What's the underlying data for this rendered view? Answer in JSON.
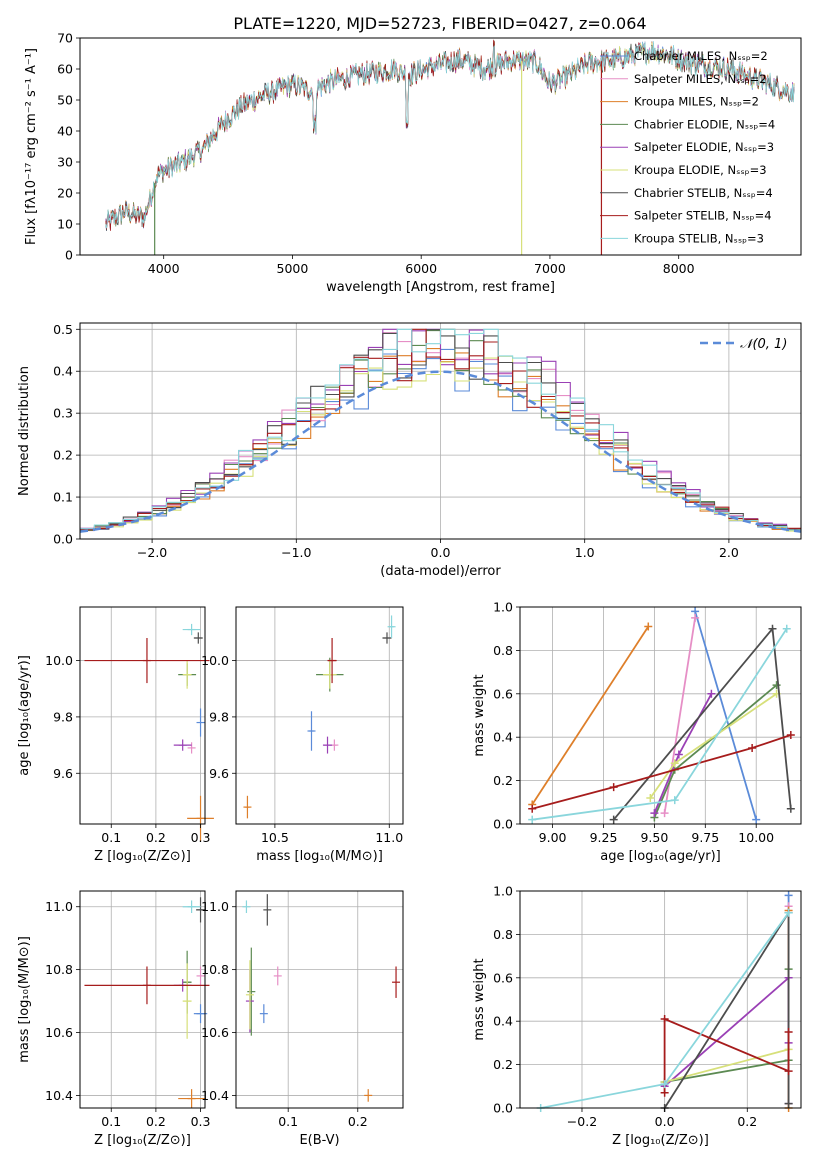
{
  "figure_title": "PLATE=1220, MJD=52723, FIBERID=0427, z=0.064",
  "model_colors": [
    "#5b8bd8",
    "#e68fc6",
    "#de7f2a",
    "#5c8a52",
    "#9a40b5",
    "#d7e07a",
    "#4d4d4d",
    "#a61c1c",
    "#8ad6dc"
  ],
  "chart_data": [
    {
      "id": "spectrum",
      "type": "line",
      "title": "PLATE=1220, MJD=52723, FIBERID=0427, z=0.064",
      "xlabel": "wavelength [Angstrom, rest frame]",
      "ylabel": "Flux [fλ10⁻¹⁷ erg cm⁻² s⁻¹ A⁻¹]",
      "xlim": [
        3350,
        8950
      ],
      "ylim": [
        0,
        70
      ],
      "xticks": [
        4000,
        5000,
        6000,
        7000,
        8000
      ],
      "yticks": [
        0,
        10,
        20,
        30,
        40,
        50,
        60,
        70
      ],
      "grid": false,
      "legend_position": "right",
      "legend": [
        "Chabrier MILES, Nₛₛₚ=2",
        "Salpeter MILES, Nₛₛₚ=2",
        "Kroupa MILES, Nₛₛₚ=2",
        "Chabrier ELODIE, Nₛₛₚ=4",
        "Salpeter ELODIE, Nₛₛₚ=3",
        "Kroupa ELODIE, Nₛₛₚ=3",
        "Chabrier STELIB, Nₛₛₚ=4",
        "Salpeter STELIB, Nₛₛₚ=4",
        "Kroupa STELIB, Nₛₛₚ=3"
      ],
      "continuum": {
        "x": [
          3550,
          3700,
          3850,
          3950,
          4050,
          4150,
          4300,
          4450,
          4600,
          4800,
          5000,
          5150,
          5300,
          5500,
          5800,
          5900,
          6100,
          6300,
          6500,
          6700,
          6900,
          7000,
          7150,
          7300,
          7500,
          7800,
          8100,
          8400,
          8900
        ],
        "y": [
          10,
          14,
          12,
          26,
          28,
          30,
          34,
          42,
          48,
          52,
          55,
          53,
          56,
          58,
          60,
          58,
          61,
          63,
          60,
          63,
          62,
          55,
          58,
          62,
          63,
          66,
          62,
          60,
          52
        ]
      },
      "spectrum_end": 8900,
      "line_drops": [
        {
          "x": 3930,
          "model": 3
        },
        {
          "x": 6780,
          "model": 5
        },
        {
          "x": 7400,
          "model": 7
        }
      ]
    },
    {
      "id": "residuals",
      "type": "histogram",
      "xlabel": "(data-model)/error",
      "ylabel": "Normed distribution",
      "xlim": [
        -2.5,
        2.5
      ],
      "ylim": [
        0,
        0.515
      ],
      "xticks": [
        -2,
        -1,
        0,
        1,
        2
      ],
      "yticks": [
        0.0,
        0.1,
        0.2,
        0.3,
        0.4,
        0.5
      ],
      "grid": true,
      "legend_position": "top-right",
      "reference_curve": {
        "label": "𝒩(0, 1)",
        "mean": 0,
        "sigma": 1,
        "style": "dashed"
      },
      "bin_width": 0.1,
      "series_peak_heights": [
        0.41,
        0.47,
        0.42,
        0.45,
        0.49,
        0.43,
        0.46,
        0.45,
        0.47
      ]
    },
    {
      "id": "age_vs_Z",
      "type": "errorbar",
      "xlabel": "Z [log₁₀(Z/Z⊙)]",
      "ylabel": "age  [log₁₀(age/yr)]",
      "xlim": [
        0.03,
        0.31
      ],
      "ylim": [
        9.42,
        10.19
      ],
      "xticks": [
        0.1,
        0.2,
        0.3
      ],
      "yticks": [
        9.6,
        9.8,
        10.0
      ],
      "grid": true,
      "points": [
        {
          "x": 0.3,
          "y": 9.78,
          "xerr": 0,
          "yerr": 0.05
        },
        {
          "x": 0.28,
          "y": 9.69,
          "xerr": 0,
          "yerr": 0.02
        },
        {
          "x": 0.3,
          "y": 9.44,
          "xerr": 0.03,
          "yerr": 0.08
        },
        {
          "x": 0.27,
          "y": 9.95,
          "xerr": 0.02,
          "yerr": 0.04
        },
        {
          "x": 0.26,
          "y": 9.7,
          "xerr": 0.02,
          "yerr": 0.02
        },
        {
          "x": 0.27,
          "y": 9.95,
          "xerr": 0.01,
          "yerr": 0.05
        },
        {
          "x": 0.295,
          "y": 10.08,
          "xerr": 0.01,
          "yerr": 0.02
        },
        {
          "x": 0.18,
          "y": 10.0,
          "xerr": 0.14,
          "yerr": 0.08
        },
        {
          "x": 0.28,
          "y": 10.11,
          "xerr": 0.02,
          "yerr": 0.02
        }
      ]
    },
    {
      "id": "age_vs_mass",
      "type": "errorbar",
      "xlabel": "mass [log₁₀(M/M⊙)]",
      "ylabel": "",
      "xlim": [
        10.33,
        11.06
      ],
      "ylim": [
        9.42,
        10.19
      ],
      "xticks": [
        10.5,
        11.0
      ],
      "yticks": [
        9.6,
        9.8,
        10.0
      ],
      "grid": true,
      "points": [
        {
          "x": 10.66,
          "y": 9.75,
          "xerr": 0.01,
          "yerr": 0.07
        },
        {
          "x": 10.76,
          "y": 9.7,
          "xerr": 0.01,
          "yerr": 0.02
        },
        {
          "x": 10.38,
          "y": 9.48,
          "xerr": 0.01,
          "yerr": 0.04
        },
        {
          "x": 10.74,
          "y": 9.95,
          "xerr": 0.06,
          "yerr": 0.06
        },
        {
          "x": 10.73,
          "y": 9.7,
          "xerr": 0.02,
          "yerr": 0.03
        },
        {
          "x": 10.74,
          "y": 9.95,
          "xerr": 0.03,
          "yerr": 0.05
        },
        {
          "x": 10.99,
          "y": 10.08,
          "xerr": 0.02,
          "yerr": 0.02
        },
        {
          "x": 10.75,
          "y": 10.0,
          "xerr": 0.02,
          "yerr": 0.08
        },
        {
          "x": 11.01,
          "y": 10.12,
          "xerr": 0.01,
          "yerr": 0.04
        }
      ]
    },
    {
      "id": "weight_vs_age",
      "type": "line",
      "xlabel": "age  [log₁₀(age/yr)]",
      "ylabel": "mass weight",
      "xlim": [
        8.84,
        10.22
      ],
      "ylim": [
        0,
        1
      ],
      "xticks": [
        9.0,
        9.25,
        9.5,
        9.75,
        10.0
      ],
      "yticks": [
        0.0,
        0.2,
        0.4,
        0.6,
        0.8,
        1.0
      ],
      "grid": true,
      "series": [
        {
          "x": [
            9.7,
            10.0
          ],
          "y": [
            0.98,
            0.02
          ]
        },
        {
          "x": [
            9.55,
            9.7
          ],
          "y": [
            0.05,
            0.95
          ]
        },
        {
          "x": [
            8.9,
            9.47
          ],
          "y": [
            0.09,
            0.91
          ]
        },
        {
          "x": [
            9.5,
            9.6,
            10.1
          ],
          "y": [
            0.03,
            0.25,
            0.64
          ]
        },
        {
          "x": [
            9.5,
            9.62,
            9.78
          ],
          "y": [
            0.05,
            0.32,
            0.6
          ]
        },
        {
          "x": [
            9.48,
            9.6,
            10.1
          ],
          "y": [
            0.12,
            0.28,
            0.6
          ]
        },
        {
          "x": [
            9.3,
            10.08,
            10.17
          ],
          "y": [
            0.02,
            0.9,
            0.07
          ]
        },
        {
          "x": [
            8.9,
            9.3,
            9.98,
            10.17
          ],
          "y": [
            0.07,
            0.17,
            0.35,
            0.41
          ]
        },
        {
          "x": [
            8.9,
            9.6,
            10.15
          ],
          "y": [
            0.02,
            0.11,
            0.9
          ]
        }
      ]
    },
    {
      "id": "mass_vs_Z",
      "type": "errorbar",
      "xlabel": "Z [log₁₀(Z/Z⊙)]",
      "ylabel": "mass [log₁₀(M/M⊙)]",
      "xlim": [
        0.03,
        0.31
      ],
      "ylim": [
        10.36,
        11.05
      ],
      "xticks": [
        0.1,
        0.2,
        0.3
      ],
      "yticks": [
        10.4,
        10.6,
        10.8,
        11.0
      ],
      "grid": true,
      "points": [
        {
          "x": 0.3,
          "y": 10.66,
          "xerr": 0.015,
          "yerr": 0.03
        },
        {
          "x": 0.3,
          "y": 10.78,
          "xerr": 0,
          "yerr": 0.03
        },
        {
          "x": 0.28,
          "y": 10.39,
          "xerr": 0.03,
          "yerr": 0.03
        },
        {
          "x": 0.27,
          "y": 10.76,
          "xerr": 0.01,
          "yerr": 0.1
        },
        {
          "x": 0.26,
          "y": 10.75,
          "xerr": 0.02,
          "yerr": 0.02
        },
        {
          "x": 0.27,
          "y": 10.7,
          "xerr": 0.01,
          "yerr": 0.12
        },
        {
          "x": 0.3,
          "y": 10.99,
          "xerr": 0.01,
          "yerr": 0.04
        },
        {
          "x": 0.18,
          "y": 10.75,
          "xerr": 0.14,
          "yerr": 0.06
        },
        {
          "x": 0.28,
          "y": 11.0,
          "xerr": 0.02,
          "yerr": 0.02
        }
      ]
    },
    {
      "id": "mass_vs_EBV",
      "type": "errorbar",
      "xlabel": "E(B-V)",
      "ylabel": "",
      "xlim": [
        0.025,
        0.265
      ],
      "ylim": [
        10.36,
        11.05
      ],
      "xticks": [
        0.1,
        0.2
      ],
      "yticks": [
        10.4,
        10.6,
        10.8,
        11.0
      ],
      "grid": true,
      "points": [
        {
          "x": 0.065,
          "y": 10.66,
          "xerr": 0,
          "yerr": 0.03
        },
        {
          "x": 0.085,
          "y": 10.78,
          "xerr": 0,
          "yerr": 0.03
        },
        {
          "x": 0.215,
          "y": 10.4,
          "xerr": 0,
          "yerr": 0.02
        },
        {
          "x": 0.047,
          "y": 10.73,
          "xerr": 0,
          "yerr": 0.14
        },
        {
          "x": 0.045,
          "y": 10.7,
          "xerr": 0,
          "yerr": 0.1
        },
        {
          "x": 0.045,
          "y": 10.72,
          "xerr": 0,
          "yerr": 0.11
        },
        {
          "x": 0.07,
          "y": 10.99,
          "xerr": 0,
          "yerr": 0.05
        },
        {
          "x": 0.255,
          "y": 10.76,
          "xerr": 0,
          "yerr": 0.05
        },
        {
          "x": 0.04,
          "y": 11.0,
          "xerr": 0,
          "yerr": 0.02
        }
      ]
    },
    {
      "id": "weight_vs_Z",
      "type": "line",
      "xlabel": "Z [log₁₀(Z/Z⊙)]",
      "ylabel": "mass weight",
      "xlim": [
        -0.35,
        0.33
      ],
      "ylim": [
        0,
        1
      ],
      "xticks": [
        -0.2,
        0.0,
        0.2
      ],
      "yticks": [
        0.0,
        0.2,
        0.4,
        0.6,
        0.8,
        1.0
      ],
      "grid": true,
      "series": [
        {
          "x": [
            0.3,
            0.3
          ],
          "y": [
            0.02,
            0.98
          ]
        },
        {
          "x": [
            0.3,
            0.3
          ],
          "y": [
            0.02,
            0.93
          ]
        },
        {
          "x": [
            0.3,
            0.3
          ],
          "y": [
            0.0,
            0.91
          ]
        },
        {
          "x": [
            0.0,
            0.3,
            0.3
          ],
          "y": [
            0.12,
            0.22,
            0.64
          ]
        },
        {
          "x": [
            0.0,
            0.3,
            0.3
          ],
          "y": [
            0.1,
            0.6,
            0.3
          ]
        },
        {
          "x": [
            0.0,
            0.3
          ],
          "y": [
            0.12,
            0.27
          ]
        },
        {
          "x": [
            0.0,
            0.3,
            0.3
          ],
          "y": [
            0.0,
            0.9,
            0.02
          ]
        },
        {
          "x": [
            0.0,
            0.0,
            0.3,
            0.3
          ],
          "y": [
            0.07,
            0.41,
            0.17,
            0.35
          ]
        },
        {
          "x": [
            -0.3,
            0.0,
            0.3
          ],
          "y": [
            0.0,
            0.11,
            0.9
          ]
        }
      ]
    }
  ]
}
